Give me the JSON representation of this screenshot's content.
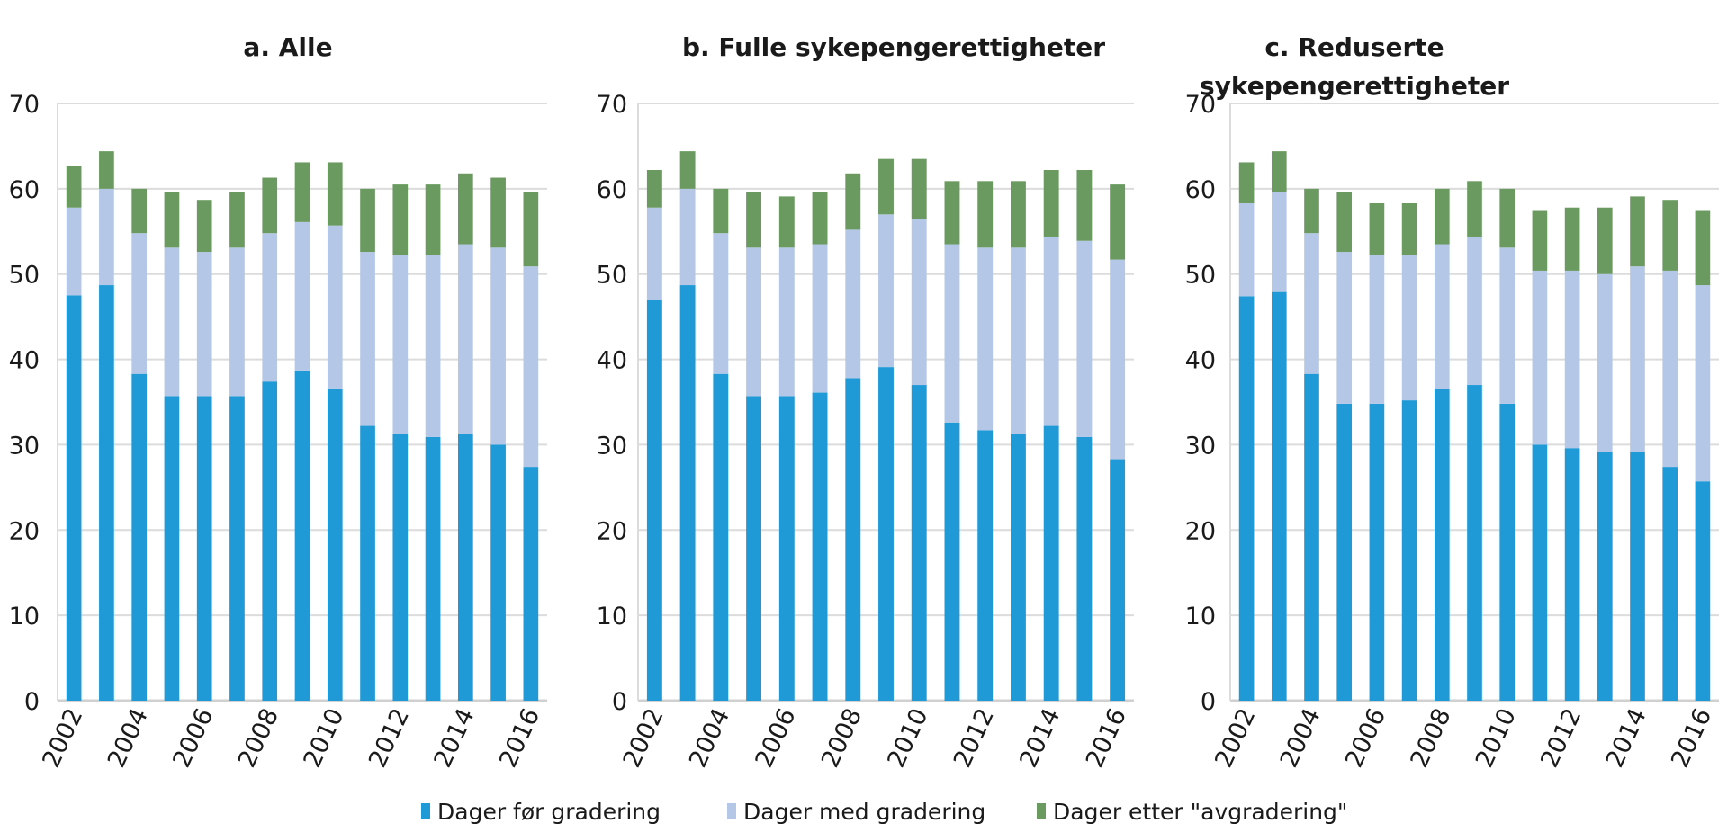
{
  "chart_data": [
    {
      "type": "bar",
      "stacked": true,
      "title": [
        "a. Alle"
      ],
      "categories": [
        "2002",
        "2003",
        "2004",
        "2005",
        "2006",
        "2007",
        "2008",
        "2009",
        "2010",
        "2011",
        "2012",
        "2013",
        "2014",
        "2015",
        "2016"
      ],
      "x_tick_labels": [
        "2002",
        "2004",
        "2006",
        "2008",
        "2010",
        "2012",
        "2014",
        "2016"
      ],
      "ylim": [
        0,
        70
      ],
      "y_ticks": [
        0,
        10,
        20,
        30,
        40,
        50,
        60,
        70
      ],
      "grid": true,
      "series": [
        {
          "name": "Dager før gradering",
          "values": [
            47.5,
            48.7,
            38.3,
            35.7,
            35.7,
            35.7,
            37.4,
            38.7,
            36.6,
            32.2,
            31.3,
            30.9,
            31.3,
            30.0,
            27.4
          ]
        },
        {
          "name": "Dager med gradering",
          "values": [
            10.3,
            11.3,
            16.5,
            17.4,
            16.9,
            17.4,
            17.4,
            17.4,
            19.1,
            20.4,
            20.9,
            21.3,
            22.2,
            23.1,
            23.5
          ]
        },
        {
          "name": "Dager etter \"avgradering\"",
          "values": [
            4.9,
            4.4,
            5.2,
            6.5,
            6.1,
            6.5,
            6.5,
            7.0,
            7.4,
            7.4,
            8.3,
            8.3,
            8.3,
            8.2,
            8.7
          ]
        }
      ]
    },
    {
      "type": "bar",
      "stacked": true,
      "title": [
        "b. Fulle sykepengerettigheter"
      ],
      "categories": [
        "2002",
        "2003",
        "2004",
        "2005",
        "2006",
        "2007",
        "2008",
        "2009",
        "2010",
        "2011",
        "2012",
        "2013",
        "2014",
        "2015",
        "2016"
      ],
      "x_tick_labels": [
        "2002",
        "2004",
        "2006",
        "2008",
        "2010",
        "2012",
        "2014",
        "2016"
      ],
      "ylim": [
        0,
        70
      ],
      "y_ticks": [
        0,
        10,
        20,
        30,
        40,
        50,
        60,
        70
      ],
      "grid": true,
      "series": [
        {
          "name": "Dager før gradering",
          "values": [
            47.0,
            48.7,
            38.3,
            35.7,
            35.7,
            36.1,
            37.8,
            39.1,
            37.0,
            32.6,
            31.7,
            31.3,
            32.2,
            30.9,
            28.3
          ]
        },
        {
          "name": "Dager med gradering",
          "values": [
            10.8,
            11.3,
            16.5,
            17.4,
            17.4,
            17.4,
            17.4,
            17.9,
            19.5,
            20.9,
            21.4,
            21.8,
            22.2,
            23.0,
            23.4
          ]
        },
        {
          "name": "Dager etter \"avgradering\"",
          "values": [
            4.4,
            4.4,
            5.2,
            6.5,
            6.0,
            6.1,
            6.6,
            6.5,
            7.0,
            7.4,
            7.8,
            7.8,
            7.8,
            8.3,
            8.8
          ]
        }
      ]
    },
    {
      "type": "bar",
      "stacked": true,
      "title": [
        "c. Reduserte",
        "sykepengerettigheter"
      ],
      "categories": [
        "2002",
        "2003",
        "2004",
        "2005",
        "2006",
        "2007",
        "2008",
        "2009",
        "2010",
        "2011",
        "2012",
        "2013",
        "2014",
        "2015",
        "2016"
      ],
      "x_tick_labels": [
        "2002",
        "2004",
        "2006",
        "2008",
        "2010",
        "2012",
        "2014",
        "2016"
      ],
      "ylim": [
        0,
        70
      ],
      "y_ticks": [
        0,
        10,
        20,
        30,
        40,
        50,
        60,
        70
      ],
      "grid": true,
      "series": [
        {
          "name": "Dager før gradering",
          "values": [
            47.4,
            47.9,
            38.3,
            34.8,
            34.8,
            35.2,
            36.5,
            37.0,
            34.8,
            30.0,
            29.6,
            29.1,
            29.1,
            27.4,
            25.7
          ]
        },
        {
          "name": "Dager med gradering",
          "values": [
            10.9,
            11.7,
            16.5,
            17.8,
            17.4,
            17.0,
            17.0,
            17.4,
            18.3,
            20.4,
            20.8,
            20.9,
            21.8,
            23.0,
            23.0
          ]
        },
        {
          "name": "Dager etter \"avgradering\"",
          "values": [
            4.8,
            4.8,
            5.2,
            7.0,
            6.1,
            6.1,
            6.5,
            6.5,
            6.9,
            7.0,
            7.4,
            7.8,
            8.2,
            8.3,
            8.7
          ]
        }
      ]
    }
  ],
  "legend": {
    "placement": "bottom",
    "items": [
      "Dager før gradering",
      "Dager med gradering",
      "Dager etter \"avgradering\""
    ]
  },
  "colors": [
    "#1f9ad6",
    "#b4c7e7",
    "#6a9a60"
  ]
}
